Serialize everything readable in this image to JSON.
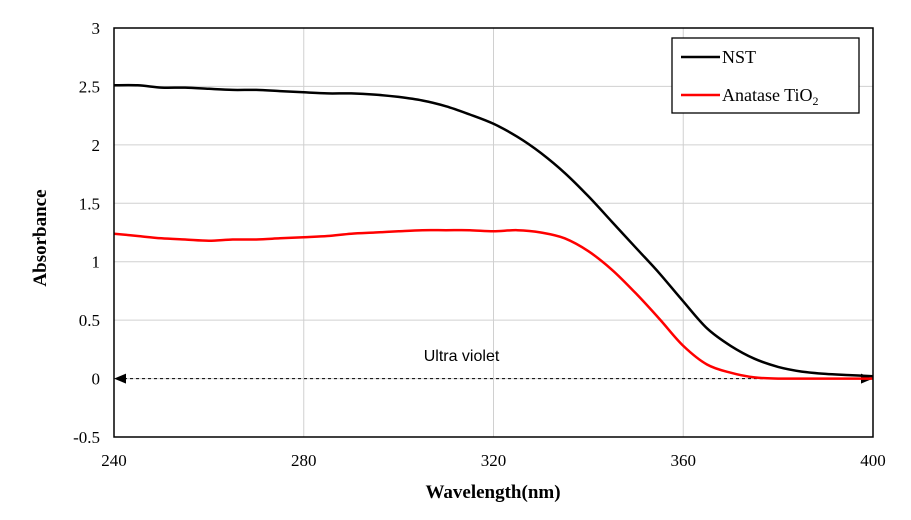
{
  "chart_data": {
    "type": "line",
    "title": "",
    "xlabel": "Wavelength(nm)",
    "ylabel": "Absorbance",
    "xlim": [
      240,
      400
    ],
    "ylim": [
      -0.5,
      3
    ],
    "xticks": [
      240,
      280,
      320,
      360,
      400
    ],
    "yticks": [
      -0.5,
      0,
      0.5,
      1,
      1.5,
      2,
      2.5,
      3
    ],
    "ytick_labels": [
      "-0.5",
      "0",
      "0.5",
      "1",
      "1.5",
      "2",
      "2.5",
      "3"
    ],
    "xtick_labels": [
      "240",
      "280",
      "320",
      "360",
      "400"
    ],
    "grid": true,
    "legend_position": "top-right",
    "series": [
      {
        "name": "NST",
        "color": "#000000",
        "x": [
          240,
          245,
          250,
          255,
          260,
          265,
          270,
          275,
          280,
          285,
          290,
          295,
          300,
          305,
          310,
          315,
          320,
          325,
          330,
          335,
          340,
          345,
          350,
          355,
          360,
          365,
          370,
          375,
          380,
          385,
          390,
          395,
          400
        ],
        "y": [
          2.51,
          2.51,
          2.49,
          2.49,
          2.48,
          2.47,
          2.47,
          2.46,
          2.45,
          2.44,
          2.44,
          2.43,
          2.41,
          2.38,
          2.33,
          2.26,
          2.18,
          2.07,
          1.93,
          1.76,
          1.56,
          1.34,
          1.12,
          0.9,
          0.66,
          0.43,
          0.28,
          0.17,
          0.1,
          0.06,
          0.04,
          0.03,
          0.02
        ]
      },
      {
        "name": "Anatase TiO",
        "name_subscript": "2",
        "color": "#ff0000",
        "x": [
          240,
          245,
          250,
          255,
          260,
          265,
          270,
          275,
          280,
          285,
          290,
          295,
          300,
          305,
          310,
          315,
          320,
          325,
          330,
          335,
          340,
          345,
          350,
          355,
          360,
          365,
          370,
          375,
          380,
          385,
          390,
          395,
          400
        ],
        "y": [
          1.24,
          1.22,
          1.2,
          1.19,
          1.18,
          1.19,
          1.19,
          1.2,
          1.21,
          1.22,
          1.24,
          1.25,
          1.26,
          1.27,
          1.27,
          1.27,
          1.26,
          1.27,
          1.25,
          1.2,
          1.09,
          0.93,
          0.73,
          0.51,
          0.28,
          0.12,
          0.05,
          0.01,
          0.0,
          0.0,
          0.0,
          0.0,
          0.0
        ]
      }
    ],
    "annotations": [
      {
        "text": "Ultra violet",
        "x": 320,
        "y": 0.2,
        "arrow_y": 0,
        "arrow_from": 240,
        "arrow_to": 400
      }
    ]
  }
}
